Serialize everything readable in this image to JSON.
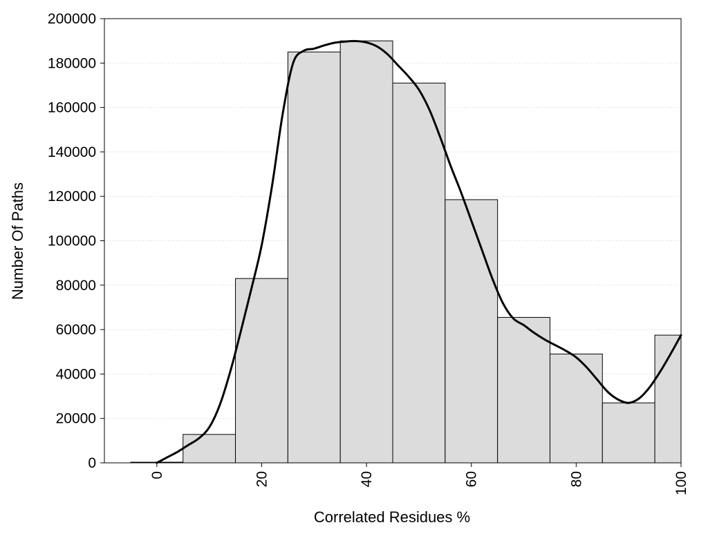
{
  "chart_data": {
    "type": "bar",
    "subtype": "histogram-with-smooth-curve",
    "title": "",
    "xlabel": "Correlated Residues %",
    "ylabel": "Number Of Paths",
    "xlim": [
      -10,
      100
    ],
    "ylim": [
      0,
      200000
    ],
    "xticks": [
      "0",
      "20",
      "40",
      "60",
      "80",
      "100"
    ],
    "yticks": [
      "0",
      "20000",
      "40000",
      "60000",
      "80000",
      "100000",
      "120000",
      "140000",
      "160000",
      "180000",
      "200000"
    ],
    "grid": "horizontal dotted",
    "legend": "none",
    "bin_width": 10,
    "bins": [
      {
        "x": 0,
        "value": 300
      },
      {
        "x": 10,
        "value": 12800
      },
      {
        "x": 20,
        "value": 83000
      },
      {
        "x": 30,
        "value": 185000
      },
      {
        "x": 40,
        "value": 190000
      },
      {
        "x": 50,
        "value": 171000
      },
      {
        "x": 60,
        "value": 118500
      },
      {
        "x": 70,
        "value": 65500
      },
      {
        "x": 80,
        "value": 49000
      },
      {
        "x": 90,
        "value": 27000
      },
      {
        "x": 100,
        "value": 57500
      }
    ],
    "curve": {
      "x": [
        0,
        2,
        4,
        6,
        8,
        10,
        12,
        14,
        16,
        18,
        20,
        22,
        24,
        26,
        28,
        30,
        32,
        34,
        36,
        38,
        40,
        42,
        44,
        46,
        48,
        50,
        52,
        54,
        56,
        58,
        60,
        62,
        64,
        66,
        68,
        70,
        72,
        74,
        76,
        78,
        80,
        82,
        84,
        86,
        88,
        90,
        92,
        94,
        96,
        98,
        100
      ],
      "y": [
        0,
        2500,
        5000,
        8000,
        11000,
        16000,
        26000,
        41000,
        59000,
        78000,
        98000,
        125000,
        157000,
        180000,
        185500,
        186500,
        188000,
        189200,
        189700,
        189900,
        189300,
        187500,
        184000,
        179000,
        174000,
        168000,
        159000,
        147000,
        134000,
        122000,
        109000,
        96000,
        83000,
        72000,
        65000,
        62000,
        58500,
        55500,
        53000,
        50500,
        47500,
        43000,
        37500,
        32000,
        28500,
        27000,
        29000,
        34000,
        41000,
        49000,
        57500
      ]
    },
    "colors": {
      "bar_fill": "#dcdcdc",
      "bar_stroke": "#000000",
      "curve": "#000000",
      "grid": "#c8c8c8"
    }
  }
}
